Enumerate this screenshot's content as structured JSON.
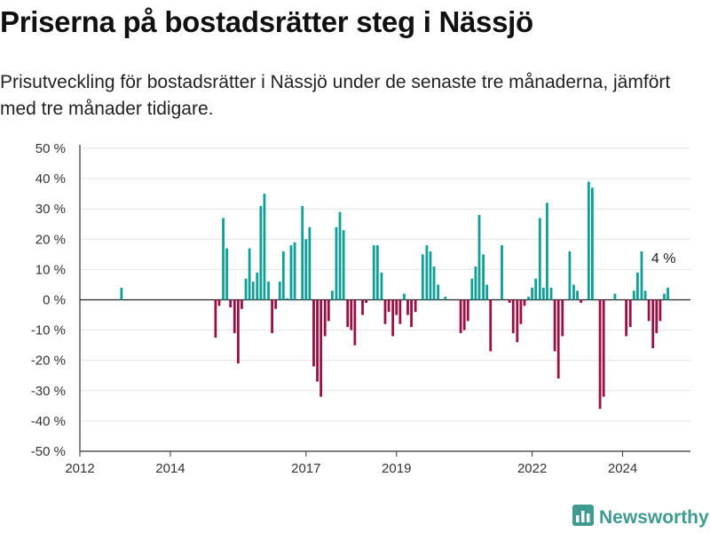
{
  "header": {
    "title": "Priserna på bostadsrätter steg i Nässjö",
    "subtitle": "Prisutveckling för bostadsrätter i Nässjö under de senaste tre månaderna, jämfört med tre månader tidigare."
  },
  "brand": {
    "name": "Newsworthy",
    "icon": "bar-chart-logo-icon",
    "color": "#3f9a8f"
  },
  "colors": {
    "positive": "#0e9f97",
    "negative": "#9a0f45",
    "axis": "#333333",
    "grid": "#e2e2e2"
  },
  "chart_data": {
    "type": "bar",
    "ylim": [
      -50,
      50
    ],
    "yticks": [
      -50,
      -40,
      -30,
      -20,
      -10,
      0,
      10,
      20,
      30,
      40,
      50
    ],
    "ytick_suffix": " %",
    "xlim": [
      2012.0,
      2025.5
    ],
    "xticks": [
      2012,
      2014,
      2017,
      2019,
      2022,
      2024
    ],
    "grid": true,
    "annotation": {
      "text": "4 %",
      "x": 2024.83,
      "y": 4
    },
    "series": [
      {
        "points": [
          {
            "x": 2012.92,
            "y": 4
          },
          {
            "x": 2015.0,
            "y": -12.5
          },
          {
            "x": 2015.08,
            "y": -2
          },
          {
            "x": 2015.17,
            "y": 27
          },
          {
            "x": 2015.25,
            "y": 17
          },
          {
            "x": 2015.33,
            "y": -2.5
          },
          {
            "x": 2015.42,
            "y": -11
          },
          {
            "x": 2015.5,
            "y": -21
          },
          {
            "x": 2015.58,
            "y": -3
          },
          {
            "x": 2015.67,
            "y": 7
          },
          {
            "x": 2015.75,
            "y": 17
          },
          {
            "x": 2015.83,
            "y": 6
          },
          {
            "x": 2015.92,
            "y": 9
          },
          {
            "x": 2016.0,
            "y": 31
          },
          {
            "x": 2016.08,
            "y": 35
          },
          {
            "x": 2016.17,
            "y": 6
          },
          {
            "x": 2016.25,
            "y": -11
          },
          {
            "x": 2016.33,
            "y": -3
          },
          {
            "x": 2016.42,
            "y": 6
          },
          {
            "x": 2016.5,
            "y": 16
          },
          {
            "x": 2016.58,
            "y": 0.5
          },
          {
            "x": 2016.67,
            "y": 18
          },
          {
            "x": 2016.75,
            "y": 19
          },
          {
            "x": 2016.92,
            "y": 31
          },
          {
            "x": 2017.0,
            "y": 20
          },
          {
            "x": 2017.08,
            "y": 24
          },
          {
            "x": 2017.17,
            "y": -22
          },
          {
            "x": 2017.25,
            "y": -27
          },
          {
            "x": 2017.33,
            "y": -32
          },
          {
            "x": 2017.42,
            "y": -12
          },
          {
            "x": 2017.5,
            "y": -7
          },
          {
            "x": 2017.58,
            "y": 3
          },
          {
            "x": 2017.67,
            "y": 24
          },
          {
            "x": 2017.75,
            "y": 29
          },
          {
            "x": 2017.83,
            "y": 23
          },
          {
            "x": 2017.92,
            "y": -9
          },
          {
            "x": 2018.0,
            "y": -10
          },
          {
            "x": 2018.08,
            "y": -15
          },
          {
            "x": 2018.25,
            "y": -5
          },
          {
            "x": 2018.33,
            "y": -1
          },
          {
            "x": 2018.5,
            "y": 18
          },
          {
            "x": 2018.58,
            "y": 18
          },
          {
            "x": 2018.67,
            "y": 9
          },
          {
            "x": 2018.75,
            "y": -8
          },
          {
            "x": 2018.83,
            "y": -4
          },
          {
            "x": 2018.92,
            "y": -12
          },
          {
            "x": 2019.0,
            "y": -5
          },
          {
            "x": 2019.08,
            "y": -8
          },
          {
            "x": 2019.17,
            "y": 2
          },
          {
            "x": 2019.25,
            "y": -5
          },
          {
            "x": 2019.33,
            "y": -9
          },
          {
            "x": 2019.42,
            "y": -4
          },
          {
            "x": 2019.58,
            "y": 15
          },
          {
            "x": 2019.67,
            "y": 18
          },
          {
            "x": 2019.75,
            "y": 16
          },
          {
            "x": 2019.83,
            "y": 11
          },
          {
            "x": 2019.92,
            "y": 5
          },
          {
            "x": 2020.08,
            "y": 1
          },
          {
            "x": 2020.42,
            "y": -11
          },
          {
            "x": 2020.5,
            "y": -10
          },
          {
            "x": 2020.58,
            "y": -7
          },
          {
            "x": 2020.67,
            "y": 7
          },
          {
            "x": 2020.75,
            "y": 11
          },
          {
            "x": 2020.83,
            "y": 28
          },
          {
            "x": 2020.92,
            "y": 15
          },
          {
            "x": 2021.0,
            "y": 5
          },
          {
            "x": 2021.08,
            "y": -17
          },
          {
            "x": 2021.33,
            "y": 18
          },
          {
            "x": 2021.5,
            "y": -1
          },
          {
            "x": 2021.58,
            "y": -11
          },
          {
            "x": 2021.67,
            "y": -14
          },
          {
            "x": 2021.75,
            "y": -8
          },
          {
            "x": 2021.83,
            "y": -2
          },
          {
            "x": 2021.92,
            "y": 1
          },
          {
            "x": 2022.0,
            "y": 4
          },
          {
            "x": 2022.08,
            "y": 7
          },
          {
            "x": 2022.17,
            "y": 27
          },
          {
            "x": 2022.25,
            "y": 4
          },
          {
            "x": 2022.33,
            "y": 32
          },
          {
            "x": 2022.42,
            "y": 4
          },
          {
            "x": 2022.5,
            "y": -17
          },
          {
            "x": 2022.58,
            "y": -26
          },
          {
            "x": 2022.67,
            "y": -12
          },
          {
            "x": 2022.83,
            "y": 16
          },
          {
            "x": 2022.92,
            "y": 5
          },
          {
            "x": 2023.0,
            "y": 3
          },
          {
            "x": 2023.08,
            "y": -1
          },
          {
            "x": 2023.25,
            "y": 39
          },
          {
            "x": 2023.33,
            "y": 37
          },
          {
            "x": 2023.5,
            "y": -36
          },
          {
            "x": 2023.58,
            "y": -32
          },
          {
            "x": 2023.83,
            "y": 2
          },
          {
            "x": 2024.08,
            "y": -12
          },
          {
            "x": 2024.17,
            "y": -9
          },
          {
            "x": 2024.25,
            "y": 3
          },
          {
            "x": 2024.33,
            "y": 9
          },
          {
            "x": 2024.42,
            "y": 16
          },
          {
            "x": 2024.5,
            "y": 3
          },
          {
            "x": 2024.58,
            "y": -7
          },
          {
            "x": 2024.67,
            "y": -16
          },
          {
            "x": 2024.75,
            "y": -11
          },
          {
            "x": 2024.83,
            "y": -7
          },
          {
            "x": 2024.92,
            "y": 2
          },
          {
            "x": 2025.0,
            "y": 4
          }
        ]
      }
    ]
  }
}
